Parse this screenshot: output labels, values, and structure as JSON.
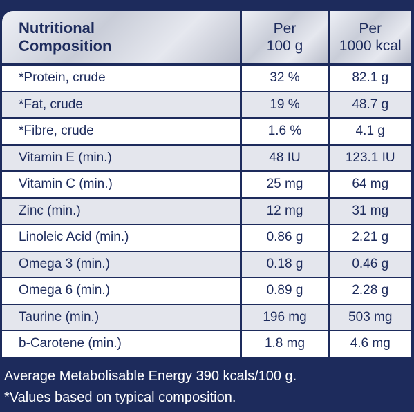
{
  "table": {
    "header": {
      "name_line1": "Nutritional",
      "name_line2": "Composition",
      "col1_line1": "Per",
      "col1_line2": "100 g",
      "col2_line1": "Per",
      "col2_line2": "1000 kcal"
    },
    "rows": [
      {
        "name": "*Protein, crude",
        "per100g": "32 %",
        "per1000kcal": "82.1 g"
      },
      {
        "name": "*Fat, crude",
        "per100g": "19 %",
        "per1000kcal": "48.7 g"
      },
      {
        "name": "*Fibre, crude",
        "per100g": "1.6 %",
        "per1000kcal": "4.1 g"
      },
      {
        "name": "Vitamin E (min.)",
        "per100g": "48 IU",
        "per1000kcal": "123.1 IU"
      },
      {
        "name": "Vitamin C (min.)",
        "per100g": "25 mg",
        "per1000kcal": "64 mg"
      },
      {
        "name": "Zinc (min.)",
        "per100g": "12 mg",
        "per1000kcal": "31 mg"
      },
      {
        "name": "Linoleic Acid (min.)",
        "per100g": "0.86 g",
        "per1000kcal": "2.21 g"
      },
      {
        "name": "Omega 3 (min.)",
        "per100g": "0.18 g",
        "per1000kcal": "0.46 g"
      },
      {
        "name": "Omega 6 (min.)",
        "per100g": "0.89 g",
        "per1000kcal": "2.28 g"
      },
      {
        "name": "Taurine (min.)",
        "per100g": "196 mg",
        "per1000kcal": "503 mg"
      },
      {
        "name": "b-Carotene (min.)",
        "per100g": "1.8 mg",
        "per1000kcal": "4.6 mg"
      }
    ]
  },
  "footer": {
    "energy": "Average Metabolisable Energy 390 kcals/100 g.",
    "note": "*Values based on typical composition."
  },
  "colors": {
    "background": "#1d2b5c",
    "row_alt": "#e4e6ed",
    "text": "#1d2b5c"
  }
}
